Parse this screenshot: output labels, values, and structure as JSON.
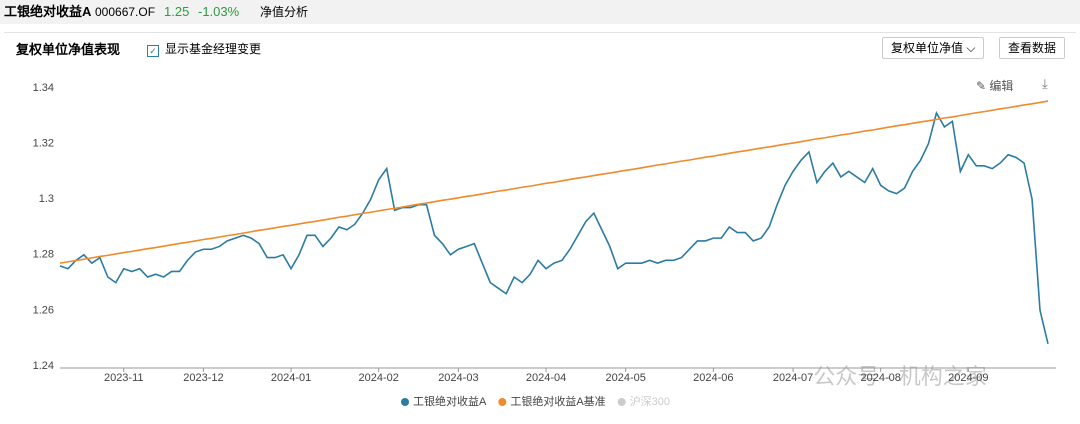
{
  "header": {
    "fund_name": "工银绝对收益A",
    "code": "000667.OF",
    "nav": "1.25",
    "change": "-1.03%",
    "tab": "净值分析"
  },
  "toolbar": {
    "title": "复权单位净值表现",
    "checkbox": "显示基金经理变更",
    "dropdown": "复权单位净值",
    "button": "查看数据",
    "edit": "编辑"
  },
  "watermark": "公众号 · 机构之家",
  "chart_data": {
    "type": "line",
    "categories": [
      null,
      null,
      null,
      null,
      null,
      null,
      null,
      null,
      "2023-11",
      null,
      null,
      null,
      null,
      null,
      null,
      null,
      null,
      null,
      "2023-12",
      null,
      null,
      null,
      null,
      null,
      null,
      null,
      null,
      null,
      null,
      "2024-01",
      null,
      null,
      null,
      null,
      null,
      null,
      null,
      null,
      null,
      null,
      "2024-02",
      null,
      null,
      null,
      null,
      null,
      null,
      null,
      null,
      null,
      "2024-03",
      null,
      null,
      null,
      null,
      null,
      null,
      null,
      null,
      null,
      null,
      "2024-04",
      null,
      null,
      null,
      null,
      null,
      null,
      null,
      null,
      null,
      "2024-05",
      null,
      null,
      null,
      null,
      null,
      null,
      null,
      null,
      null,
      null,
      "2024-06",
      null,
      null,
      null,
      null,
      null,
      null,
      null,
      null,
      null,
      "2024-07",
      null,
      null,
      null,
      null,
      null,
      null,
      null,
      null,
      null,
      null,
      "2024-08",
      null,
      null,
      null,
      null,
      null,
      null,
      null,
      null,
      null,
      null,
      "2024-09",
      null,
      null,
      null,
      null,
      null,
      null,
      null,
      null,
      null,
      null
    ],
    "series": [
      {
        "name": "工银绝对收益A",
        "color": "#2b7ba3",
        "values": [
          1.276,
          1.275,
          1.278,
          1.28,
          1.277,
          1.279,
          1.272,
          1.27,
          1.275,
          1.274,
          1.275,
          1.272,
          1.273,
          1.272,
          1.274,
          1.274,
          1.278,
          1.281,
          1.282,
          1.282,
          1.283,
          1.285,
          1.286,
          1.287,
          1.286,
          1.284,
          1.279,
          1.279,
          1.28,
          1.275,
          1.28,
          1.287,
          1.287,
          1.283,
          1.286,
          1.29,
          1.289,
          1.291,
          1.295,
          1.3,
          1.307,
          1.311,
          1.296,
          1.297,
          1.297,
          1.298,
          1.298,
          1.287,
          1.284,
          1.28,
          1.282,
          1.283,
          1.284,
          1.277,
          1.27,
          1.268,
          1.266,
          1.272,
          1.27,
          1.273,
          1.278,
          1.275,
          1.277,
          1.278,
          1.282,
          1.287,
          1.292,
          1.295,
          1.289,
          1.283,
          1.275,
          1.277,
          1.277,
          1.277,
          1.278,
          1.277,
          1.278,
          1.278,
          1.279,
          1.282,
          1.285,
          1.285,
          1.286,
          1.286,
          1.29,
          1.288,
          1.288,
          1.285,
          1.286,
          1.29,
          1.298,
          1.305,
          1.31,
          1.314,
          1.317,
          1.306,
          1.31,
          1.313,
          1.308,
          1.31,
          1.308,
          1.306,
          1.311,
          1.305,
          1.303,
          1.302,
          1.304,
          1.31,
          1.314,
          1.32,
          1.331,
          1.326,
          1.328,
          1.31,
          1.316,
          1.312,
          1.312,
          1.311,
          1.313,
          1.316,
          1.315,
          1.313,
          1.3,
          1.26,
          1.248
        ]
      },
      {
        "name": "工银绝对收益A基准",
        "color": "#f08a2a",
        "values": [
          1.277,
          1.2775,
          1.2779,
          1.2784,
          1.2789,
          1.2794,
          1.2798,
          1.2803,
          1.2808,
          1.2812,
          1.2817,
          1.2822,
          1.2826,
          1.2831,
          1.2836,
          1.2841,
          1.2845,
          1.285,
          1.2855,
          1.2859,
          1.2864,
          1.2869,
          1.2873,
          1.2878,
          1.2883,
          1.2888,
          1.2892,
          1.2897,
          1.2902,
          1.2906,
          1.2911,
          1.2916,
          1.292,
          1.2925,
          1.293,
          1.2935,
          1.2939,
          1.2944,
          1.2949,
          1.2953,
          1.2958,
          1.2963,
          1.2967,
          1.2972,
          1.2977,
          1.2982,
          1.2986,
          1.2991,
          1.2996,
          1.3,
          1.3005,
          1.301,
          1.3014,
          1.3019,
          1.3024,
          1.3029,
          1.3033,
          1.3038,
          1.3043,
          1.3047,
          1.3052,
          1.3057,
          1.3061,
          1.3066,
          1.3071,
          1.3076,
          1.308,
          1.3085,
          1.309,
          1.3094,
          1.3099,
          1.3104,
          1.3108,
          1.3113,
          1.3118,
          1.3123,
          1.3127,
          1.3132,
          1.3137,
          1.3141,
          1.3146,
          1.3151,
          1.3155,
          1.316,
          1.3165,
          1.317,
          1.3174,
          1.3179,
          1.3184,
          1.3188,
          1.3193,
          1.3198,
          1.3202,
          1.3207,
          1.3212,
          1.3217,
          1.3221,
          1.3226,
          1.3231,
          1.3235,
          1.324,
          1.3245,
          1.3249,
          1.3254,
          1.3259,
          1.3264,
          1.3268,
          1.3273,
          1.3278,
          1.3282,
          1.3287,
          1.3292,
          1.3296,
          1.3301,
          1.3306,
          1.3311,
          1.3315,
          1.332,
          1.3325,
          1.3329,
          1.3334,
          1.3339,
          1.3343,
          1.3348,
          1.3353
        ]
      }
    ],
    "hidden_series": [
      {
        "name": "沪深300",
        "color": "#cccccc"
      }
    ],
    "ylim": [
      1.24,
      1.34
    ],
    "yticks": [
      1.24,
      1.26,
      1.28,
      1.3,
      1.32,
      1.34
    ],
    "grid": false
  }
}
